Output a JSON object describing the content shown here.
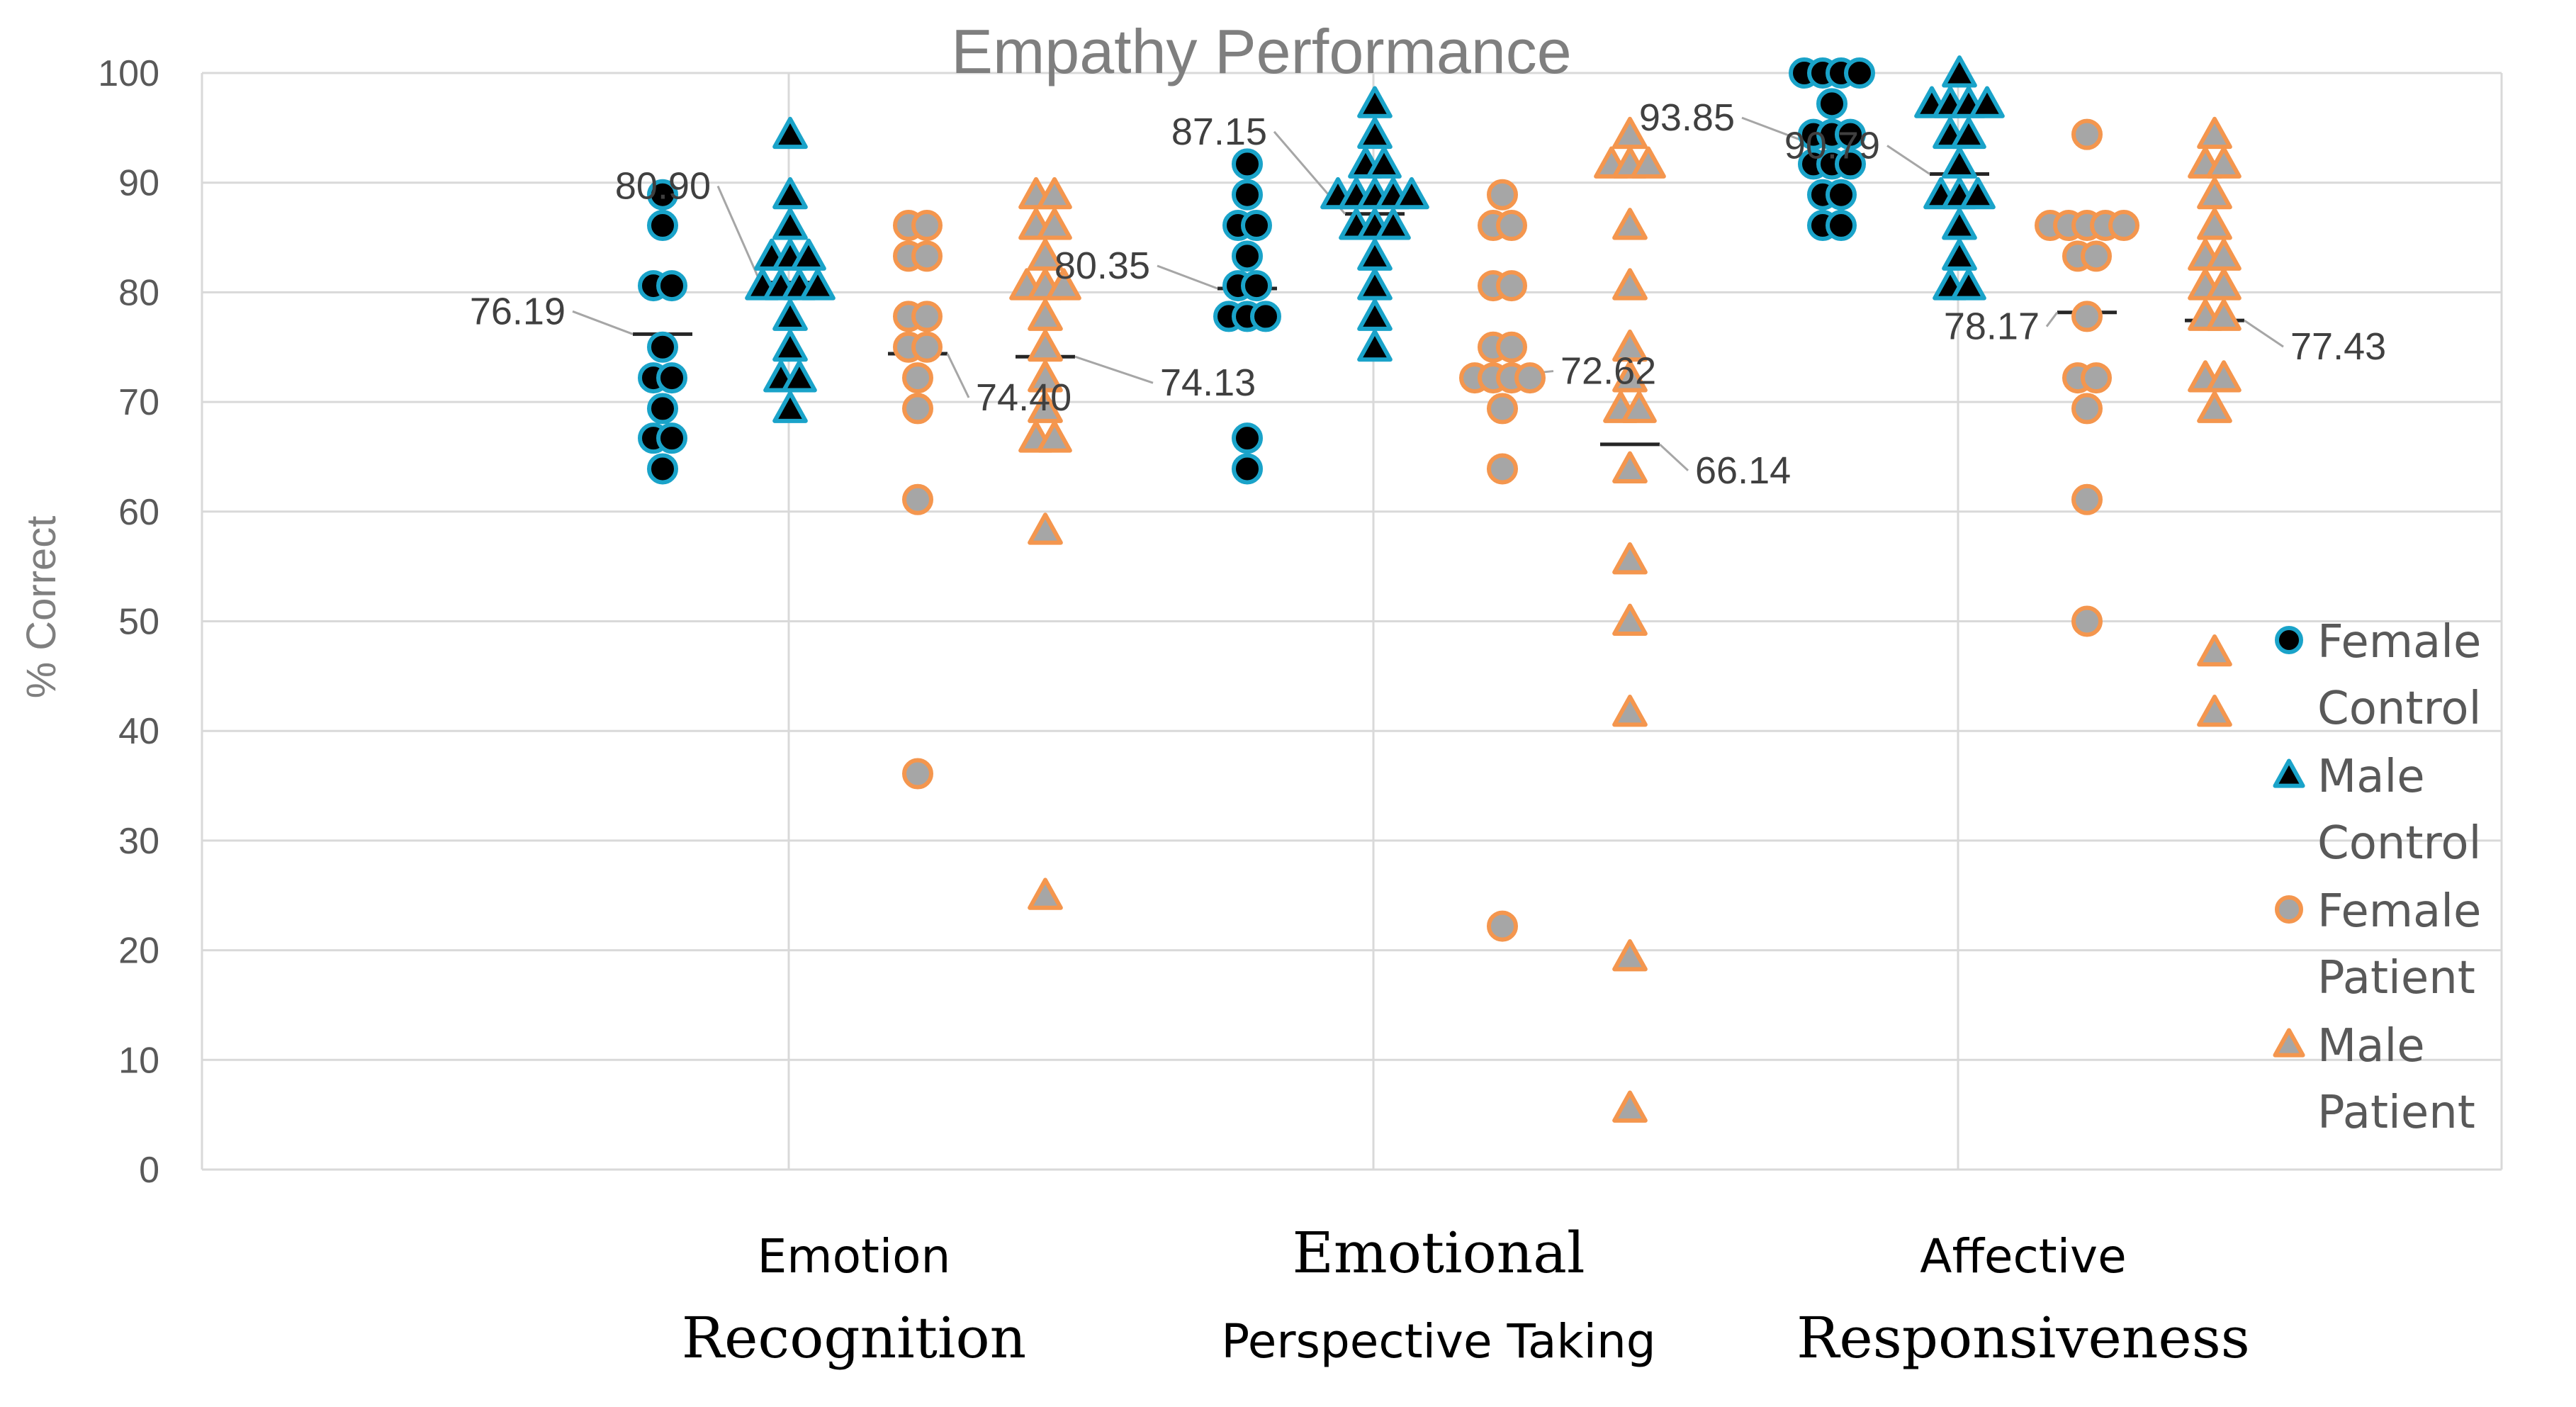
{
  "chart_data": {
    "type": "scatter",
    "title": "Empathy Performance",
    "ylabel": "% Correct",
    "xlabel": "",
    "ylim": [
      0,
      100
    ],
    "yticks": [
      0,
      10,
      20,
      30,
      40,
      50,
      60,
      70,
      80,
      90,
      100
    ],
    "grid": true,
    "legend_position": "right",
    "colors": {
      "female_control_fill": "#000000",
      "female_control_edge": "#1aa3c9",
      "male_control_fill": "#000000",
      "male_control_edge": "#1aa3c9",
      "female_patient_fill": "#a6a6a6",
      "female_patient_edge": "#f4964e",
      "male_patient_fill": "#a6a6a6",
      "male_patient_edge": "#f4964e"
    },
    "categories": [
      {
        "label_line1": "Emotion",
        "label_line2": "Recognition",
        "line1_font": "sans",
        "line2_font": "serif"
      },
      {
        "label_line1": "Emotional",
        "label_line2": "Perspective Taking",
        "line1_font": "serif",
        "line2_font": "sans"
      },
      {
        "label_line1": "Affective",
        "label_line2": "Responsiveness",
        "line1_font": "sans",
        "line2_font": "serif"
      }
    ],
    "series": [
      {
        "name": "Female Control",
        "legend_line1": "Female",
        "legend_line2": "Control",
        "marker": "circle",
        "means": [
          76.19,
          80.35,
          93.85
        ],
        "mean_labels": [
          "76.19",
          "80.35",
          "93.85"
        ],
        "values": [
          [
            88.9,
            86.1,
            80.6,
            80.6,
            75,
            72.2,
            72.2,
            69.4,
            66.7,
            66.7,
            63.9
          ],
          [
            91.7,
            88.9,
            86.1,
            86.1,
            83.3,
            80.6,
            80.6,
            77.8,
            77.8,
            77.8,
            66.7,
            63.9
          ],
          [
            100,
            100,
            100,
            100,
            97.2,
            94.4,
            94.4,
            94.4,
            91.7,
            91.7,
            91.7,
            88.9,
            88.9,
            86.1,
            86.1
          ]
        ]
      },
      {
        "name": "Male Control",
        "legend_line1": "Male",
        "legend_line2": "Control",
        "marker": "triangle",
        "means": [
          80.9,
          87.15,
          90.79
        ],
        "mean_labels": [
          "80.90",
          "87.15",
          "90.79"
        ],
        "values": [
          [
            94.4,
            88.9,
            86.1,
            83.3,
            83.3,
            83.3,
            80.6,
            80.6,
            80.6,
            80.6,
            77.8,
            75,
            72.2,
            72.2,
            69.4
          ],
          [
            97.2,
            94.4,
            91.7,
            91.7,
            88.9,
            88.9,
            88.9,
            88.9,
            88.9,
            86.1,
            86.1,
            86.1,
            83.3,
            80.6,
            77.8,
            75
          ],
          [
            100,
            97.2,
            97.2,
            97.2,
            97.2,
            94.4,
            94.4,
            91.7,
            88.9,
            88.9,
            88.9,
            86.1,
            83.3,
            80.6,
            80.6
          ]
        ]
      },
      {
        "name": "Female Patient",
        "legend_line1": "Female",
        "legend_line2": "Patient",
        "marker": "circle",
        "means": [
          74.4,
          72.62,
          78.17
        ],
        "mean_labels": [
          "74.40",
          "72.62",
          "78.17"
        ],
        "values": [
          [
            86.1,
            86.1,
            83.3,
            83.3,
            77.8,
            77.8,
            75,
            75,
            72.2,
            69.4,
            61.1,
            36.1
          ],
          [
            88.9,
            86.1,
            86.1,
            80.6,
            80.6,
            75,
            75,
            72.2,
            72.2,
            72.2,
            72.2,
            69.4,
            63.9,
            22.2
          ],
          [
            94.4,
            86.1,
            86.1,
            86.1,
            86.1,
            86.1,
            83.3,
            83.3,
            77.8,
            72.2,
            72.2,
            69.4,
            61.1,
            50
          ]
        ]
      },
      {
        "name": "Male Patient",
        "legend_line1": "Male",
        "legend_line2": "Patient",
        "marker": "triangle",
        "means": [
          74.13,
          66.14,
          77.43
        ],
        "mean_labels": [
          "74.13",
          "66.14",
          "77.43"
        ],
        "values": [
          [
            88.9,
            88.9,
            86.1,
            86.1,
            83.3,
            80.6,
            80.6,
            80.6,
            77.8,
            75,
            72.2,
            69.4,
            66.7,
            66.7,
            58.3,
            25
          ],
          [
            94.4,
            91.7,
            91.7,
            91.7,
            86.1,
            80.6,
            75,
            72.2,
            69.4,
            69.4,
            63.9,
            55.6,
            50,
            41.7,
            19.4,
            5.6
          ],
          [
            94.4,
            91.7,
            91.7,
            88.9,
            86.1,
            83.3,
            83.3,
            80.6,
            80.6,
            77.8,
            77.8,
            72.2,
            72.2,
            69.4,
            47.2,
            41.7
          ]
        ]
      }
    ]
  }
}
